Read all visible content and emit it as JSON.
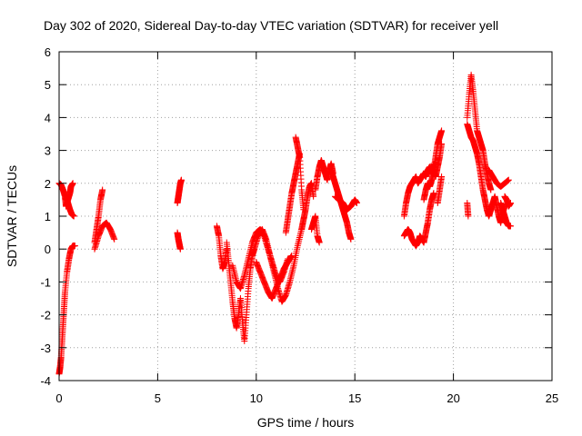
{
  "chart_data": {
    "type": "scatter",
    "title": "Day 302 of 2020, Sidereal Day-to-day VTEC variation (SDTVAR) for receiver yell",
    "xlabel": "GPS time / hours",
    "ylabel": "SDTVAR / TECUs",
    "xlim": [
      0,
      25
    ],
    "ylim": [
      -4,
      6
    ],
    "xticks": [
      0,
      5,
      10,
      15,
      20,
      25
    ],
    "yticks": [
      -4,
      -3,
      -2,
      -1,
      0,
      1,
      2,
      3,
      4,
      5,
      6
    ],
    "grid": true,
    "marker": "+",
    "color": "#ff0000",
    "segments": [
      {
        "x": [
          0.0,
          0.1,
          0.2,
          0.3,
          0.35,
          0.45,
          0.55,
          0.6,
          0.7
        ],
        "y": [
          2.0,
          1.95,
          1.8,
          1.6,
          1.3,
          1.5,
          1.7,
          1.9,
          2.0
        ]
      },
      {
        "x": [
          0.35,
          0.45,
          0.55,
          0.65,
          0.75
        ],
        "y": [
          1.6,
          1.4,
          1.2,
          1.05,
          1.0
        ]
      },
      {
        "x": [
          0.0,
          0.05,
          0.1,
          0.15,
          0.2,
          0.25,
          0.3,
          0.4,
          0.5,
          0.6,
          0.7,
          0.8
        ],
        "y": [
          -3.8,
          -3.6,
          -3.3,
          -2.8,
          -2.3,
          -1.8,
          -1.3,
          -0.7,
          -0.3,
          0.0,
          0.1,
          0.1
        ]
      },
      {
        "x": [
          1.8,
          1.9,
          2.0,
          2.1,
          2.2
        ],
        "y": [
          0.2,
          0.6,
          1.0,
          1.5,
          1.8
        ]
      },
      {
        "x": [
          1.8,
          2.0,
          2.2,
          2.4,
          2.6,
          2.8
        ],
        "y": [
          0.0,
          0.4,
          0.7,
          0.8,
          0.6,
          0.3
        ]
      },
      {
        "x": [
          6.0,
          6.05,
          6.1,
          6.15,
          6.2
        ],
        "y": [
          1.4,
          1.6,
          1.8,
          2.0,
          2.1
        ]
      },
      {
        "x": [
          6.0,
          6.05,
          6.1,
          6.15
        ],
        "y": [
          0.5,
          0.3,
          0.15,
          0.0
        ]
      },
      {
        "x": [
          8.0,
          8.1,
          8.2,
          8.3,
          8.4,
          8.5
        ],
        "y": [
          0.7,
          0.4,
          -0.2,
          -0.6,
          -0.4,
          0.0
        ]
      },
      {
        "x": [
          8.5,
          8.6,
          8.7,
          8.8,
          8.9,
          9.0,
          9.1,
          9.2,
          9.3,
          9.4,
          9.5,
          9.6,
          9.7,
          9.8,
          9.9
        ],
        "y": [
          0.2,
          -0.4,
          -1.0,
          -1.6,
          -2.1,
          -2.4,
          -2.0,
          -1.5,
          -2.2,
          -2.8,
          -2.0,
          -1.2,
          -0.6,
          -0.2,
          0.0
        ]
      },
      {
        "x": [
          8.8,
          9.0,
          9.2,
          9.4,
          9.6,
          9.8,
          10.0,
          10.2,
          10.4,
          10.6,
          10.8,
          11.0,
          11.2,
          11.4,
          11.6
        ],
        "y": [
          -0.5,
          -1.0,
          -1.2,
          -0.8,
          -0.3,
          0.2,
          0.5,
          0.6,
          0.4,
          0.0,
          -0.4,
          -0.8,
          -1.0,
          -0.7,
          -0.3
        ]
      },
      {
        "x": [
          9.9,
          10.1,
          10.3,
          10.5,
          10.7,
          10.9,
          11.1,
          11.3,
          11.5,
          11.7,
          11.9,
          12.1,
          12.3
        ],
        "y": [
          0.0,
          0.4,
          0.6,
          0.3,
          -0.2,
          -0.7,
          -1.2,
          -1.6,
          -1.4,
          -1.0,
          -0.5,
          0.1,
          0.6
        ]
      },
      {
        "x": [
          10.0,
          10.2,
          10.4,
          10.6,
          10.8,
          11.0,
          11.2,
          11.4,
          11.6,
          11.8
        ],
        "y": [
          -0.4,
          -0.7,
          -1.0,
          -1.3,
          -1.5,
          -1.2,
          -0.9,
          -0.6,
          -0.4,
          -0.2
        ]
      },
      {
        "x": [
          11.5,
          11.6,
          11.7,
          11.8,
          11.9,
          12.0,
          12.1,
          12.2,
          12.3,
          12.4
        ],
        "y": [
          0.5,
          0.9,
          1.3,
          1.7,
          2.0,
          2.3,
          2.6,
          2.9,
          1.8,
          1.2
        ]
      },
      {
        "x": [
          12.0,
          12.1,
          12.2
        ],
        "y": [
          3.4,
          3.1,
          2.8
        ]
      },
      {
        "x": [
          12.3,
          12.4,
          12.5,
          12.6,
          12.7,
          12.8,
          12.9
        ],
        "y": [
          0.6,
          0.9,
          1.2,
          1.6,
          1.9,
          2.0,
          1.6
        ]
      },
      {
        "x": [
          12.8,
          12.9,
          13.0,
          13.1,
          13.2
        ],
        "y": [
          0.6,
          0.8,
          1.0,
          0.4,
          0.2
        ]
      },
      {
        "x": [
          13.0,
          13.1,
          13.2,
          13.3,
          13.4,
          13.5,
          13.6,
          13.7,
          13.8,
          13.9
        ],
        "y": [
          1.8,
          2.2,
          2.5,
          2.7,
          2.5,
          2.3,
          2.1,
          2.4,
          2.6,
          2.3
        ]
      },
      {
        "x": [
          13.8,
          13.9,
          14.0,
          14.1,
          14.2,
          14.3,
          14.4,
          14.5,
          14.6,
          14.7,
          14.8
        ],
        "y": [
          2.4,
          2.2,
          2.0,
          1.8,
          1.6,
          1.4,
          1.2,
          1.0,
          0.8,
          0.5,
          0.3
        ]
      },
      {
        "x": [
          14.0,
          14.2,
          14.4,
          14.6,
          14.8,
          15.0,
          15.1
        ],
        "y": [
          1.6,
          1.5,
          1.4,
          1.2,
          1.3,
          1.5,
          1.4
        ]
      },
      {
        "x": [
          17.5,
          17.6,
          17.7,
          17.8,
          17.9,
          18.0,
          18.1,
          18.2,
          18.3,
          18.4,
          18.5,
          18.6,
          18.7,
          18.8,
          18.9,
          19.0,
          19.1,
          19.2,
          19.3,
          19.4
        ],
        "y": [
          1.0,
          1.4,
          1.7,
          1.9,
          2.0,
          2.1,
          2.2,
          2.0,
          2.1,
          2.2,
          2.3,
          2.2,
          2.4,
          2.5,
          2.3,
          2.6,
          2.2,
          2.5,
          2.8,
          3.2
        ]
      },
      {
        "x": [
          17.5,
          17.6,
          17.7,
          17.8,
          17.9,
          18.0,
          18.1,
          18.2,
          18.3,
          18.4,
          18.5,
          18.6,
          18.7,
          18.8,
          18.9,
          19.0
        ],
        "y": [
          0.4,
          0.5,
          0.6,
          0.5,
          0.3,
          0.2,
          0.1,
          0.2,
          0.4,
          0.3,
          0.2,
          0.5,
          0.8,
          1.2,
          1.5,
          1.7
        ]
      },
      {
        "x": [
          18.5,
          18.6,
          18.7,
          18.8,
          18.9,
          19.0,
          19.1,
          19.2,
          19.3,
          19.4
        ],
        "y": [
          1.5,
          1.8,
          2.0,
          1.9,
          2.1,
          2.4,
          2.8,
          3.2,
          3.4,
          3.6
        ]
      },
      {
        "x": [
          19.2,
          19.3,
          19.4
        ],
        "y": [
          1.4,
          1.8,
          2.2
        ]
      },
      {
        "x": [
          20.7,
          20.75
        ],
        "y": [
          1.4,
          1.0
        ]
      },
      {
        "x": [
          20.7,
          20.8,
          20.9,
          21.0,
          21.1,
          21.2,
          21.3,
          21.4,
          21.5,
          21.6,
          21.7,
          21.8,
          21.9
        ],
        "y": [
          4.0,
          4.7,
          5.3,
          4.8,
          4.2,
          3.6,
          3.4,
          3.2,
          3.0,
          2.6,
          2.3,
          2.0,
          1.8
        ]
      },
      {
        "x": [
          20.7,
          20.8,
          20.9,
          21.0,
          21.1,
          21.2,
          21.3,
          21.4,
          21.5,
          21.6,
          21.7,
          21.8,
          21.9,
          22.0,
          22.1,
          22.2,
          22.3,
          22.4,
          22.5,
          22.6
        ],
        "y": [
          3.8,
          3.6,
          3.4,
          3.3,
          3.1,
          2.9,
          2.6,
          2.2,
          1.8,
          1.5,
          1.2,
          1.0,
          1.2,
          1.4,
          1.6,
          1.3,
          1.0,
          0.8,
          1.1,
          1.3
        ]
      },
      {
        "x": [
          21.8,
          22.0,
          22.2,
          22.4,
          22.6,
          22.8
        ],
        "y": [
          2.4,
          2.2,
          2.0,
          1.9,
          2.0,
          2.1
        ]
      },
      {
        "x": [
          22.4,
          22.5,
          22.6,
          22.7,
          22.8,
          22.9
        ],
        "y": [
          1.4,
          1.2,
          1.0,
          0.8,
          0.7,
          0.7
        ]
      },
      {
        "x": [
          22.6,
          22.7,
          22.8,
          22.9
        ],
        "y": [
          1.6,
          1.5,
          1.3,
          1.4
        ]
      }
    ]
  }
}
